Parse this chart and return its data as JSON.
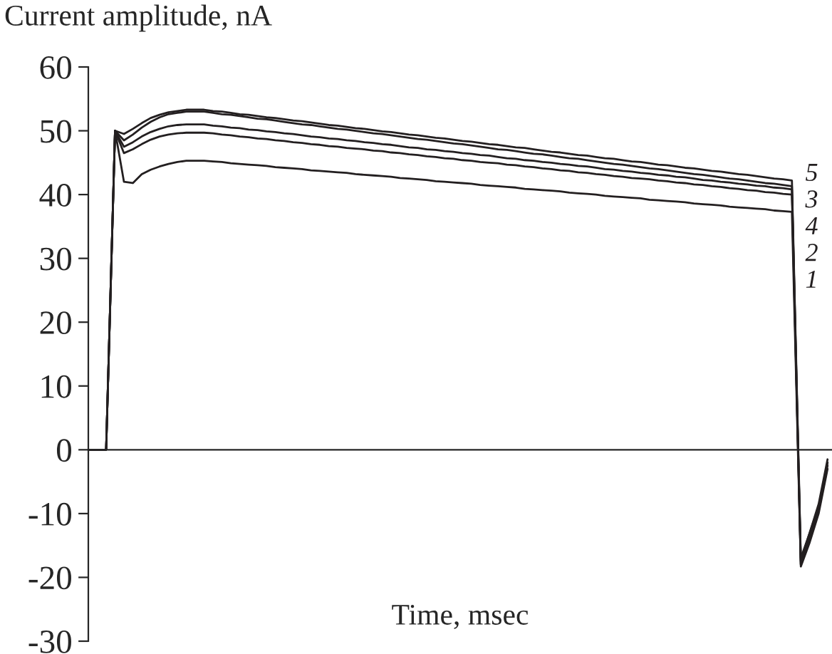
{
  "chart_data": {
    "type": "line",
    "xlabel": "Time, msec",
    "ylabel": "Current amplitude, nA",
    "categories": [
      null,
      null,
      null,
      null,
      null,
      null,
      null,
      null,
      null,
      null,
      null,
      null,
      null,
      null,
      null,
      null,
      null,
      null,
      null,
      null,
      null,
      null,
      null,
      null,
      null,
      null,
      null,
      null,
      null,
      null,
      null,
      null,
      null,
      null,
      null,
      null,
      null,
      null,
      null,
      null,
      null,
      null,
      null,
      null,
      null,
      null,
      null,
      null,
      null,
      null,
      null,
      null,
      null,
      null,
      null,
      null,
      null,
      null,
      null,
      null,
      null,
      null,
      null,
      null,
      null,
      null,
      null,
      null,
      null,
      null,
      null,
      null,
      null,
      null,
      null,
      null,
      null,
      null,
      null,
      null,
      null,
      null,
      null,
      null
    ],
    "ylim": [
      -30,
      60
    ],
    "yticks": [
      -30,
      -20,
      -10,
      0,
      10,
      20,
      30,
      40,
      50,
      60
    ],
    "tick_labels": "y",
    "legend": false,
    "series": [
      {
        "name": "1",
        "color": "#231f20",
        "values": [
          0,
          0,
          0,
          50,
          42.0,
          41.8,
          43.2,
          43.9,
          44.4,
          44.8,
          45.1,
          45.3,
          45.3,
          45.3,
          45.2,
          45.1,
          44.9,
          44.8,
          44.7,
          44.6,
          44.5,
          44.3,
          44.2,
          44.1,
          44.0,
          43.8,
          43.7,
          43.6,
          43.5,
          43.4,
          43.2,
          43.1,
          43.0,
          42.9,
          42.8,
          42.6,
          42.5,
          42.4,
          42.3,
          42.1,
          42.0,
          41.9,
          41.8,
          41.7,
          41.5,
          41.4,
          41.3,
          41.2,
          41.1,
          40.9,
          40.8,
          40.7,
          40.6,
          40.5,
          40.3,
          40.2,
          40.1,
          40.0,
          39.8,
          39.7,
          39.6,
          39.5,
          39.4,
          39.2,
          39.1,
          39.0,
          38.9,
          38.8,
          38.6,
          38.5,
          38.4,
          38.3,
          38.1,
          38.0,
          37.9,
          37.8,
          37.7,
          37.5,
          37.4,
          37.3,
          -18.3,
          -14.5,
          -10,
          -3
        ]
      },
      {
        "name": "2",
        "color": "#231f20",
        "values": [
          0,
          0,
          0,
          50,
          46.5,
          47.1,
          47.9,
          48.6,
          49.1,
          49.4,
          49.6,
          49.7,
          49.7,
          49.7,
          49.6,
          49.4,
          49.3,
          49.1,
          49.0,
          48.8,
          48.7,
          48.5,
          48.4,
          48.2,
          48.1,
          47.9,
          47.8,
          47.6,
          47.5,
          47.3,
          47.2,
          47.1,
          46.9,
          46.8,
          46.6,
          46.5,
          46.3,
          46.2,
          46.0,
          45.9,
          45.7,
          45.6,
          45.4,
          45.3,
          45.1,
          45.0,
          44.9,
          44.7,
          44.6,
          44.4,
          44.3,
          44.1,
          44.0,
          43.8,
          43.7,
          43.5,
          43.4,
          43.2,
          43.1,
          42.9,
          42.8,
          42.6,
          42.5,
          42.4,
          42.2,
          42.1,
          41.9,
          41.8,
          41.6,
          41.5,
          41.3,
          41.2,
          41.0,
          40.9,
          40.7,
          40.6,
          40.4,
          40.3,
          40.1,
          40.0,
          -18.0,
          -14.0,
          -9.5,
          -2.5
        ]
      },
      {
        "name": "3",
        "color": "#231f20",
        "values": [
          0,
          0,
          0,
          50,
          48.5,
          49.4,
          50.5,
          51.4,
          52.1,
          52.6,
          52.8,
          53.0,
          53.0,
          53.0,
          52.8,
          52.6,
          52.5,
          52.3,
          52.1,
          51.9,
          51.8,
          51.6,
          51.4,
          51.2,
          51.0,
          50.9,
          50.7,
          50.5,
          50.3,
          50.2,
          50.0,
          49.8,
          49.6,
          49.5,
          49.3,
          49.1,
          48.9,
          48.7,
          48.6,
          48.4,
          48.2,
          48.0,
          47.9,
          47.7,
          47.5,
          47.3,
          47.1,
          47.0,
          46.8,
          46.6,
          46.4,
          46.3,
          46.1,
          45.9,
          45.7,
          45.6,
          45.4,
          45.2,
          45.0,
          44.8,
          44.7,
          44.5,
          44.3,
          44.1,
          44.0,
          43.8,
          43.6,
          43.4,
          43.2,
          43.1,
          42.9,
          42.7,
          42.5,
          42.4,
          42.2,
          42.0,
          41.8,
          41.7,
          41.5,
          41.3,
          -18.0,
          -13.5,
          -9,
          -2
        ]
      },
      {
        "name": "4",
        "color": "#231f20",
        "values": [
          0,
          0,
          0,
          50,
          47.5,
          48.2,
          49.1,
          49.8,
          50.3,
          50.7,
          50.9,
          51.0,
          51.0,
          51.0,
          50.8,
          50.7,
          50.5,
          50.4,
          50.2,
          50.1,
          49.9,
          49.8,
          49.6,
          49.5,
          49.3,
          49.1,
          49.0,
          48.8,
          48.7,
          48.5,
          48.4,
          48.2,
          48.1,
          47.9,
          47.8,
          47.6,
          47.4,
          47.3,
          47.1,
          47.0,
          46.8,
          46.7,
          46.5,
          46.4,
          46.2,
          46.1,
          45.9,
          45.7,
          45.6,
          45.4,
          45.3,
          45.1,
          45.0,
          44.8,
          44.7,
          44.5,
          44.4,
          44.2,
          44.0,
          43.9,
          43.7,
          43.6,
          43.4,
          43.3,
          43.1,
          43.0,
          42.8,
          42.7,
          42.5,
          42.3,
          42.2,
          42.0,
          41.9,
          41.7,
          41.6,
          41.4,
          41.3,
          41.1,
          41.0,
          40.8,
          -17.5,
          -13,
          -9,
          -2
        ]
      },
      {
        "name": "5",
        "color": "#231f20",
        "values": [
          0,
          0,
          0,
          50,
          49.5,
          50.3,
          51.2,
          52.0,
          52.5,
          52.9,
          53.1,
          53.3,
          53.3,
          53.3,
          53.1,
          53.0,
          52.8,
          52.6,
          52.5,
          52.3,
          52.1,
          52.0,
          51.8,
          51.6,
          51.5,
          51.3,
          51.1,
          50.9,
          50.8,
          50.6,
          50.4,
          50.3,
          50.1,
          49.9,
          49.8,
          49.6,
          49.4,
          49.3,
          49.1,
          48.9,
          48.8,
          48.6,
          48.4,
          48.3,
          48.1,
          47.9,
          47.8,
          47.6,
          47.4,
          47.3,
          47.1,
          46.9,
          46.7,
          46.6,
          46.4,
          46.2,
          46.1,
          45.9,
          45.7,
          45.6,
          45.4,
          45.2,
          45.1,
          44.9,
          44.7,
          44.6,
          44.4,
          44.2,
          44.1,
          43.9,
          43.7,
          43.6,
          43.4,
          43.2,
          43.1,
          42.9,
          42.7,
          42.5,
          42.4,
          42.2,
          -17.0,
          -13,
          -8.5,
          -1.5
        ]
      }
    ]
  }
}
